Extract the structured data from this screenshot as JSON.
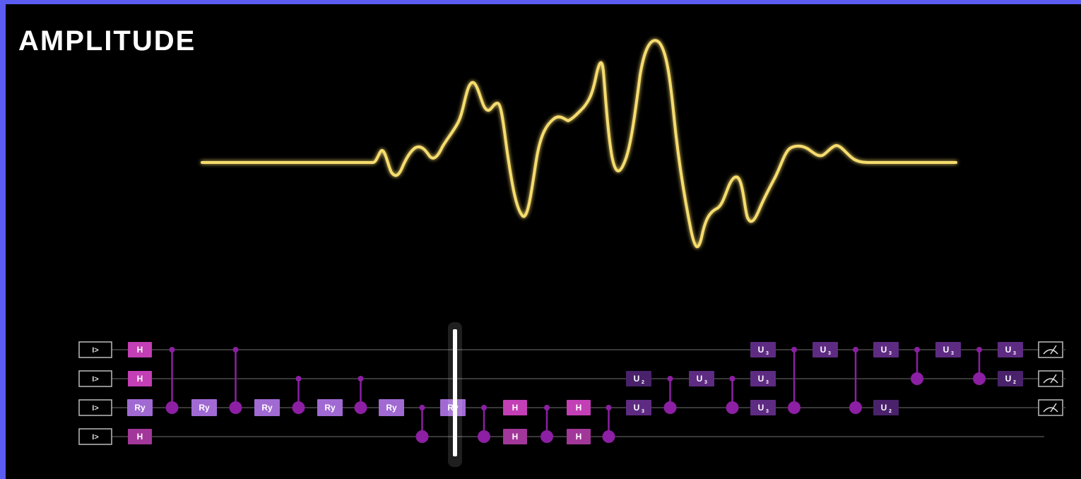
{
  "title": "AMPLITUDE",
  "colors": {
    "frame_border": "#5a5cf2",
    "background": "#000000",
    "waveform": "#f6dc6e",
    "wire": "#4a4a4a",
    "h_gate": "#c23fb5",
    "h_gate_dark": "#a2379a",
    "ry_gate": "#a06ad2",
    "u_gate": "#5e2b82",
    "u_gate_dark": "#49226b",
    "control": "#8c1fa3",
    "playhead": "#ffffff"
  },
  "circuit": {
    "qubits": [
      {
        "label": "I>",
        "measured": true
      },
      {
        "label": "I>",
        "measured": true
      },
      {
        "label": "I>",
        "measured": true
      },
      {
        "label": "I>",
        "measured": false
      }
    ],
    "gates": [
      {
        "type": "H",
        "label": "H",
        "col": 0,
        "qubit": 0
      },
      {
        "type": "H",
        "label": "H",
        "col": 0,
        "qubit": 1
      },
      {
        "type": "Ry",
        "label": "Ry",
        "col": 0,
        "qubit": 2
      },
      {
        "type": "H",
        "label": "H",
        "col": 0,
        "qubit": 3
      },
      {
        "type": "Ry",
        "label": "Ry",
        "col": 1,
        "qubit": 2
      },
      {
        "type": "Ry",
        "label": "Ry",
        "col": 2,
        "qubit": 2
      },
      {
        "type": "Ry",
        "label": "Ry",
        "col": 3,
        "qubit": 2
      },
      {
        "type": "Ry",
        "label": "Ry",
        "col": 4,
        "qubit": 2
      },
      {
        "type": "Ry",
        "label": "Ry",
        "col": 5,
        "qubit": 2
      },
      {
        "type": "H",
        "label": "H",
        "col": 6,
        "qubit": 2
      },
      {
        "type": "H",
        "label": "H",
        "col": 6,
        "qubit": 3
      },
      {
        "type": "H",
        "label": "H",
        "col": 7,
        "qubit": 2
      },
      {
        "type": "H",
        "label": "H",
        "col": 7,
        "qubit": 3
      },
      {
        "type": "U",
        "label": "U",
        "sub": "2",
        "col": 8,
        "qubit": 1
      },
      {
        "type": "U",
        "label": "U",
        "sub": "3",
        "col": 8,
        "qubit": 2
      },
      {
        "type": "U",
        "label": "U",
        "sub": "3",
        "col": 9,
        "qubit": 1
      },
      {
        "type": "U",
        "label": "U",
        "sub": "3",
        "col": 10,
        "qubit": 0
      },
      {
        "type": "U",
        "label": "U",
        "sub": "3",
        "col": 10,
        "qubit": 1
      },
      {
        "type": "U",
        "label": "U",
        "sub": "3",
        "col": 10,
        "qubit": 2
      },
      {
        "type": "U",
        "label": "U",
        "sub": "3",
        "col": 11,
        "qubit": 0
      },
      {
        "type": "U",
        "label": "U",
        "sub": "3",
        "col": 12,
        "qubit": 0
      },
      {
        "type": "U",
        "label": "U",
        "sub": "2",
        "col": 12,
        "qubit": 2
      },
      {
        "type": "U",
        "label": "U",
        "sub": "3",
        "col": 13,
        "qubit": 0
      },
      {
        "type": "U",
        "label": "U",
        "sub": "3",
        "col": 14,
        "qubit": 0
      },
      {
        "type": "U",
        "label": "U",
        "sub": "2",
        "col": 14,
        "qubit": 1
      }
    ],
    "controls": [
      {
        "col": 0.5,
        "from": 0,
        "to": 2
      },
      {
        "col": 1.5,
        "from": 0,
        "to": 2
      },
      {
        "col": 2.5,
        "from": 1,
        "to": 2
      },
      {
        "col": 3.5,
        "from": 1,
        "to": 2
      },
      {
        "col": 4.5,
        "from": 2,
        "to": 3
      },
      {
        "col": 5.5,
        "from": 2,
        "to": 3
      },
      {
        "col": 6.5,
        "from": 2,
        "to": 3
      },
      {
        "col": 7.5,
        "from": 2,
        "to": 3
      },
      {
        "col": 8.5,
        "from": 1,
        "to": 2
      },
      {
        "col": 9.5,
        "from": 1,
        "to": 2
      },
      {
        "col": 10.5,
        "from": 0,
        "to": 2
      },
      {
        "col": 11.5,
        "from": 0,
        "to": 2
      },
      {
        "col": 12.5,
        "from": 0,
        "to": 1
      },
      {
        "col": 13.5,
        "from": 0,
        "to": 1
      }
    ],
    "playhead_col": 5
  }
}
